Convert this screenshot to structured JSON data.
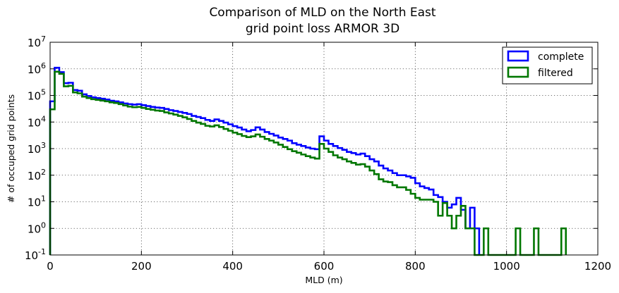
{
  "chart_data": {
    "type": "histogram-step",
    "title": [
      "Comparison of MLD on the North East",
      "grid point loss ARMOR 3D"
    ],
    "xlabel": "MLD (m)",
    "ylabel": "# of occuped grid points",
    "xlim": [
      0,
      1200
    ],
    "ylim": [
      0.1,
      10000000
    ],
    "yscale": "log",
    "xticks": [
      0,
      200,
      400,
      600,
      800,
      1000,
      1200
    ],
    "xtick_labels": [
      "0",
      "200",
      "400",
      "600",
      "800",
      "1000",
      "1200"
    ],
    "yticks": [
      0.1,
      1,
      10,
      100,
      1000,
      10000,
      100000,
      1000000,
      10000000
    ],
    "ytick_labels": [
      {
        "base": "10",
        "exp": "-1"
      },
      {
        "base": "10",
        "exp": "0"
      },
      {
        "base": "10",
        "exp": "1"
      },
      {
        "base": "10",
        "exp": "2"
      },
      {
        "base": "10",
        "exp": "3"
      },
      {
        "base": "10",
        "exp": "4"
      },
      {
        "base": "10",
        "exp": "5"
      },
      {
        "base": "10",
        "exp": "6"
      },
      {
        "base": "10",
        "exp": "7"
      }
    ],
    "grid": true,
    "legend_position": "top-right",
    "bin_width": 10,
    "bin_start": 0,
    "series": [
      {
        "name": "complete",
        "color": "#0000ff",
        "values": [
          60000,
          1100000,
          750000,
          290000,
          300000,
          160000,
          150000,
          110000,
          95000,
          85000,
          80000,
          75000,
          70000,
          63000,
          60000,
          55000,
          50000,
          47000,
          45000,
          47000,
          43000,
          40000,
          37000,
          35000,
          34000,
          31000,
          28000,
          26000,
          24000,
          22000,
          20000,
          17000,
          15500,
          14000,
          12000,
          11000,
          12500,
          11000,
          9500,
          8200,
          7000,
          6200,
          5200,
          4500,
          5000,
          6300,
          5200,
          4200,
          3600,
          3100,
          2600,
          2300,
          2000,
          1600,
          1400,
          1250,
          1100,
          1000,
          950,
          2900,
          2000,
          1500,
          1250,
          1050,
          900,
          750,
          680,
          600,
          650,
          520,
          400,
          330,
          230,
          180,
          150,
          120,
          100,
          100,
          90,
          80,
          50,
          38,
          33,
          29,
          18,
          15,
          10,
          6,
          8,
          14,
          5,
          1,
          6,
          1
        ]
      },
      {
        "name": "filtered",
        "color": "#007700",
        "values": [
          30000,
          780000,
          650000,
          220000,
          230000,
          130000,
          120000,
          90000,
          80000,
          72000,
          68000,
          64000,
          60000,
          55000,
          52000,
          47000,
          42000,
          38000,
          36000,
          37000,
          34000,
          31000,
          29000,
          27000,
          26000,
          23000,
          21000,
          19000,
          17000,
          15000,
          13000,
          11000,
          9500,
          8500,
          7200,
          6800,
          7500,
          6500,
          5500,
          4700,
          4000,
          3500,
          3000,
          2700,
          2900,
          3400,
          2800,
          2300,
          2000,
          1700,
          1400,
          1150,
          950,
          800,
          700,
          600,
          520,
          460,
          420,
          1500,
          1000,
          750,
          560,
          460,
          400,
          330,
          290,
          250,
          260,
          210,
          150,
          110,
          70,
          58,
          55,
          42,
          35,
          35,
          28,
          20,
          14,
          12,
          12,
          12,
          10,
          3,
          9,
          3,
          1,
          3,
          7,
          1,
          1,
          0.1,
          0.1,
          1,
          0.1,
          0.1,
          0.1,
          0.1,
          0.1,
          0.1,
          1,
          0.1,
          0.1,
          0.1,
          1,
          0.1,
          0.1,
          0.1,
          0.1,
          0.1,
          1
        ]
      }
    ]
  }
}
